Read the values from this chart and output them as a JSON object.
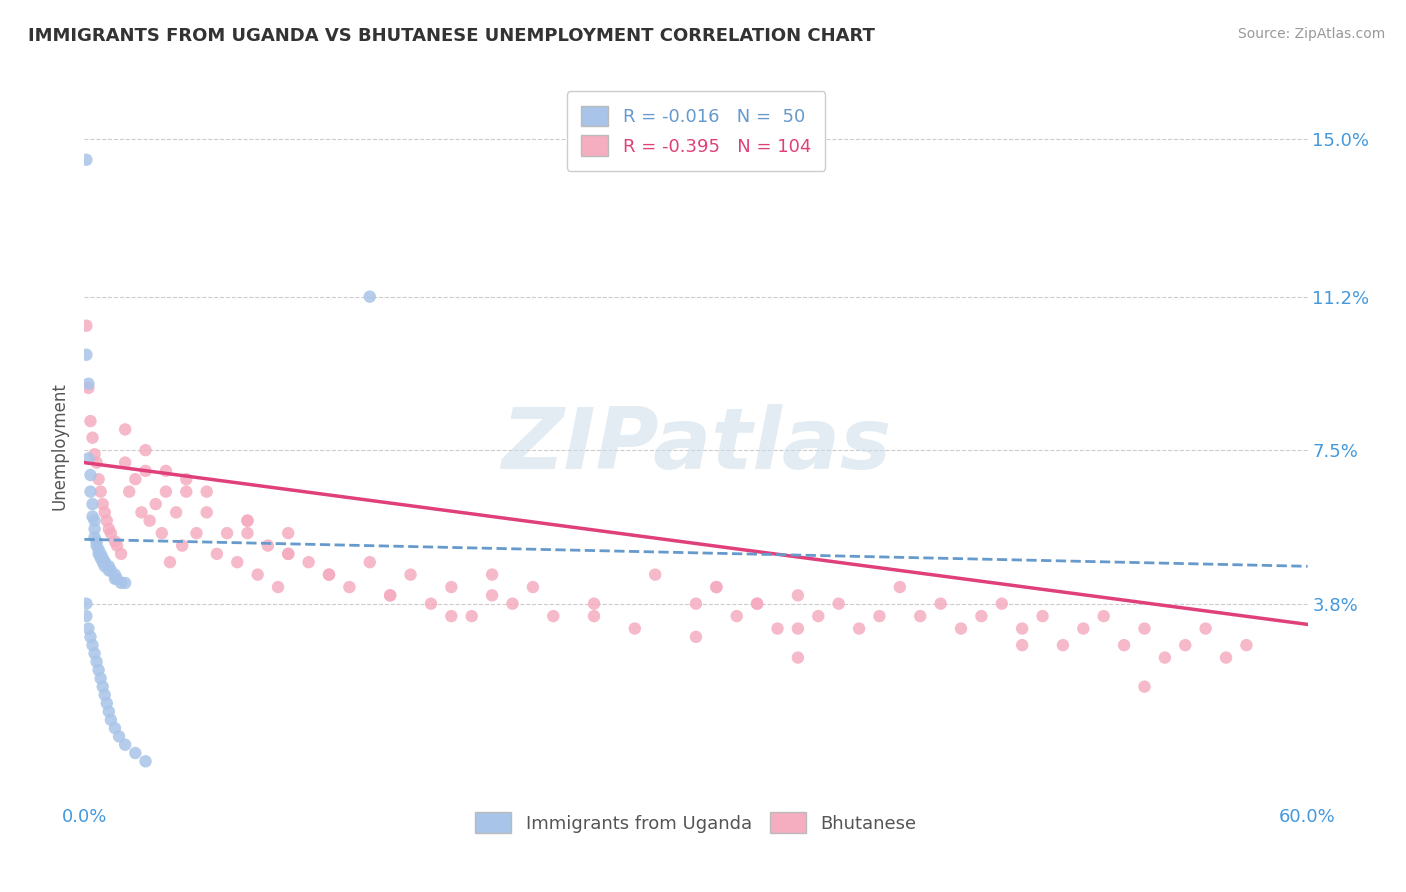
{
  "title": "IMMIGRANTS FROM UGANDA VS BHUTANESE UNEMPLOYMENT CORRELATION CHART",
  "source": "Source: ZipAtlas.com",
  "ylabel": "Unemployment",
  "xlim": [
    0.0,
    0.6
  ],
  "ylim": [
    -0.01,
    0.162
  ],
  "yticks": [
    0.038,
    0.075,
    0.112,
    0.15
  ],
  "ytick_labels": [
    "3.8%",
    "7.5%",
    "11.2%",
    "15.0%"
  ],
  "xticks": [
    0.0,
    0.1,
    0.2,
    0.3,
    0.4,
    0.5,
    0.6
  ],
  "xtick_labels": [
    "0.0%",
    "",
    "",
    "",
    "",
    "",
    "60.0%"
  ],
  "series1_label": "Immigrants from Uganda",
  "series1_R": "-0.016",
  "series1_N": "50",
  "series1_color": "#a8c4e8",
  "series1_trend_color": "#6699cc",
  "series2_label": "Bhutanese",
  "series2_R": "-0.395",
  "series2_N": "104",
  "series2_color": "#f5adc0",
  "series2_trend_color": "#e0407a",
  "background_color": "#ffffff",
  "grid_color": "#cccccc",
  "title_color": "#333333",
  "axis_label_color": "#555555",
  "tick_label_color": "#4499dd",
  "watermark": "ZIPatlas",
  "watermark_color": "#ccdde8",
  "series1_x": [
    0.001,
    0.001,
    0.002,
    0.002,
    0.003,
    0.003,
    0.004,
    0.004,
    0.005,
    0.005,
    0.005,
    0.006,
    0.006,
    0.007,
    0.007,
    0.008,
    0.008,
    0.009,
    0.009,
    0.01,
    0.01,
    0.01,
    0.012,
    0.012,
    0.013,
    0.015,
    0.015,
    0.016,
    0.018,
    0.02,
    0.001,
    0.001,
    0.002,
    0.003,
    0.004,
    0.005,
    0.006,
    0.007,
    0.008,
    0.009,
    0.01,
    0.011,
    0.012,
    0.013,
    0.015,
    0.017,
    0.02,
    0.025,
    0.03,
    0.14
  ],
  "series1_y": [
    0.145,
    0.098,
    0.091,
    0.073,
    0.069,
    0.065,
    0.062,
    0.059,
    0.058,
    0.056,
    0.054,
    0.053,
    0.052,
    0.051,
    0.05,
    0.05,
    0.049,
    0.049,
    0.048,
    0.048,
    0.048,
    0.047,
    0.047,
    0.046,
    0.046,
    0.045,
    0.044,
    0.044,
    0.043,
    0.043,
    0.038,
    0.035,
    0.032,
    0.03,
    0.028,
    0.026,
    0.024,
    0.022,
    0.02,
    0.018,
    0.016,
    0.014,
    0.012,
    0.01,
    0.008,
    0.006,
    0.004,
    0.002,
    0.0,
    0.112
  ],
  "series2_x": [
    0.001,
    0.002,
    0.003,
    0.004,
    0.005,
    0.006,
    0.007,
    0.008,
    0.009,
    0.01,
    0.011,
    0.012,
    0.013,
    0.015,
    0.016,
    0.018,
    0.02,
    0.022,
    0.025,
    0.028,
    0.03,
    0.032,
    0.035,
    0.038,
    0.04,
    0.042,
    0.045,
    0.048,
    0.05,
    0.055,
    0.06,
    0.065,
    0.07,
    0.075,
    0.08,
    0.085,
    0.09,
    0.095,
    0.1,
    0.11,
    0.12,
    0.13,
    0.14,
    0.15,
    0.16,
    0.17,
    0.18,
    0.19,
    0.2,
    0.21,
    0.22,
    0.23,
    0.25,
    0.27,
    0.28,
    0.3,
    0.31,
    0.32,
    0.33,
    0.34,
    0.35,
    0.36,
    0.37,
    0.38,
    0.39,
    0.4,
    0.41,
    0.42,
    0.43,
    0.44,
    0.45,
    0.46,
    0.47,
    0.48,
    0.49,
    0.5,
    0.51,
    0.52,
    0.53,
    0.54,
    0.55,
    0.56,
    0.57,
    0.03,
    0.05,
    0.08,
    0.1,
    0.12,
    0.15,
    0.18,
    0.2,
    0.25,
    0.3,
    0.35,
    0.02,
    0.04,
    0.06,
    0.08,
    0.1,
    0.31,
    0.33,
    0.35,
    0.46,
    0.52
  ],
  "series2_y": [
    0.105,
    0.09,
    0.082,
    0.078,
    0.074,
    0.072,
    0.068,
    0.065,
    0.062,
    0.06,
    0.058,
    0.056,
    0.055,
    0.053,
    0.052,
    0.05,
    0.072,
    0.065,
    0.068,
    0.06,
    0.075,
    0.058,
    0.062,
    0.055,
    0.065,
    0.048,
    0.06,
    0.052,
    0.068,
    0.055,
    0.06,
    0.05,
    0.055,
    0.048,
    0.058,
    0.045,
    0.052,
    0.042,
    0.055,
    0.048,
    0.045,
    0.042,
    0.048,
    0.04,
    0.045,
    0.038,
    0.042,
    0.035,
    0.045,
    0.038,
    0.042,
    0.035,
    0.038,
    0.032,
    0.045,
    0.038,
    0.042,
    0.035,
    0.038,
    0.032,
    0.04,
    0.035,
    0.038,
    0.032,
    0.035,
    0.042,
    0.035,
    0.038,
    0.032,
    0.035,
    0.038,
    0.032,
    0.035,
    0.028,
    0.032,
    0.035,
    0.028,
    0.032,
    0.025,
    0.028,
    0.032,
    0.025,
    0.028,
    0.07,
    0.065,
    0.055,
    0.05,
    0.045,
    0.04,
    0.035,
    0.04,
    0.035,
    0.03,
    0.025,
    0.08,
    0.07,
    0.065,
    0.058,
    0.05,
    0.042,
    0.038,
    0.032,
    0.028,
    0.018
  ],
  "trend1_x0": 0.0,
  "trend1_x1": 0.6,
  "trend1_y0": 0.0535,
  "trend1_y1": 0.047,
  "trend2_x0": 0.0,
  "trend2_x1": 0.6,
  "trend2_y0": 0.072,
  "trend2_y1": 0.033
}
